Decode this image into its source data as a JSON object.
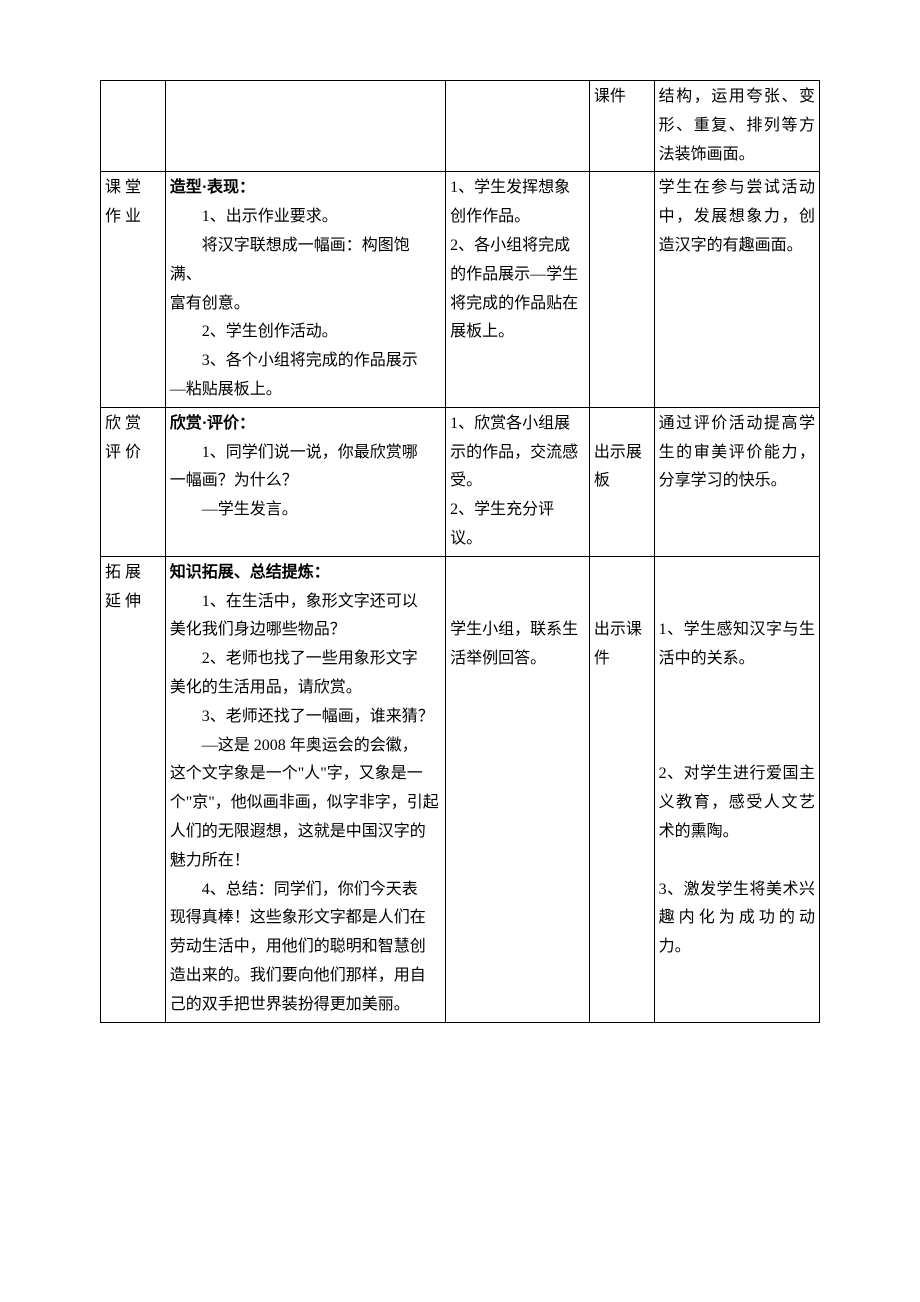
{
  "columns": {
    "section_width": "9%",
    "teacher_width": "39%",
    "student_width": "20%",
    "media_width": "9%",
    "intent_width": "23%"
  },
  "rows": [
    {
      "section": "",
      "teacher": "",
      "student": "",
      "media": "课件",
      "intent_lines": [
        "结构，运用夸张、变形、重复、排列等方法装饰画面。"
      ]
    },
    {
      "section": "课堂作业",
      "teacher_header": "造型·表现：",
      "teacher_lines": [
        "1、出示作业要求。",
        "将汉字联想成一幅画：构图饱满、富有创意。",
        "2、学生创作活动。",
        "3、各个小组将完成的作品展示—粘贴展板上。"
      ],
      "student_lines": [
        "1、学生发挥想象创作作品。",
        "2、各小组将完成的作品展示—学生将完成的作品贴在展板上。"
      ],
      "media": "",
      "intent_lines": [
        "学生在参与尝试活动中，发展想象力，创造汉字的有趣画面。"
      ]
    },
    {
      "section": "欣赏评价",
      "teacher_header": "欣赏·评价：",
      "teacher_lines": [
        "1、同学们说一说，你最欣赏哪一幅画？为什么？",
        "—学生发言。"
      ],
      "student_lines": [
        "1、欣赏各小组展示的作品，交流感受。",
        "2、学生充分评议。"
      ],
      "media": "出示展板",
      "intent_lines": [
        "通过评价活动提高学生的审美评价能力，分享学习的快乐。"
      ]
    },
    {
      "section": "拓展延伸",
      "teacher_header": "知识拓展、总结提炼：",
      "teacher_lines": [
        "1、在生活中，象形文字还可以美化我们身边哪些物品？",
        "2、老师也找了一些用象形文字美化的生活用品，请欣赏。",
        "3、老师还找了一幅画，谁来猜？",
        "—这是 2008 年奥运会的会徽，这个文字象是一个\"人\"字，又象是一个\"京\"，他似画非画，似字非字，引起人们的无限遐想，这就是中国汉字的魅力所在！",
        "4、总结：同学们，你们今天表现得真棒！这些象形文字都是人们在劳动生活中，用他们的聪明和智慧创造出来的。我们要向他们那样，用自己的双手把世界装扮得更加美丽。"
      ],
      "student_lines": [
        "",
        "",
        "学生小组，联系生活举例回答。"
      ],
      "media": "出示课件",
      "intent_lines": [
        "",
        "",
        "1、学生感知汉字与生活中的关系。",
        "",
        "",
        "",
        "2、对学生进行爱国主义教育，感受人文艺术的熏陶。",
        "",
        "3、激发学生将美术兴趣内化为成功的动力。"
      ]
    }
  ]
}
